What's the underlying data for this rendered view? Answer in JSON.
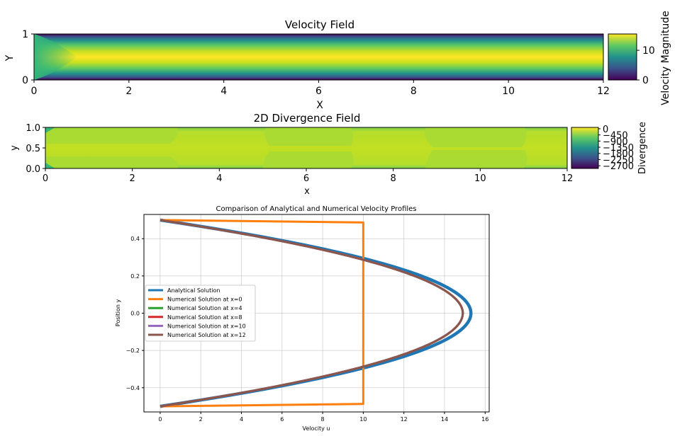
{
  "chart_data": [
    {
      "type": "heatmap",
      "title": "Velocity Field",
      "xlabel": "X",
      "ylabel": "Y",
      "xlim": [
        0,
        12
      ],
      "ylim": [
        0,
        1
      ],
      "xticks": [
        "0",
        "2",
        "4",
        "6",
        "8",
        "10",
        "12"
      ],
      "yticks": [
        "0",
        "1"
      ],
      "colormap": "viridis",
      "colorbar": {
        "label": "Velocity Magnitude",
        "ticks": [
          "0",
          "10"
        ],
        "range": [
          0,
          15.5
        ]
      },
      "max_value": 15
    },
    {
      "type": "heatmap",
      "title": "2D Divergence Field",
      "xlabel": "x",
      "ylabel": "y",
      "xlim": [
        0,
        12
      ],
      "ylim": [
        0,
        1
      ],
      "xticks": [
        "0",
        "2",
        "4",
        "6",
        "8",
        "10",
        "12"
      ],
      "yticks": [
        "0.0",
        "0.5",
        "1.0"
      ],
      "colormap": "viridis",
      "colorbar": {
        "label": "Divergence",
        "ticks": [
          "0",
          "−450",
          "−900",
          "−1350",
          "−1800",
          "−2250",
          "−2700"
        ],
        "range": [
          -2900,
          100
        ]
      }
    },
    {
      "type": "line",
      "title": "Comparison of Analytical and Numerical Velocity Profiles",
      "xlabel": "Velocity u",
      "ylabel": "Position y",
      "xlim": [
        -0.8,
        16.2
      ],
      "ylim": [
        -0.53,
        0.53
      ],
      "xticks": [
        "0",
        "2",
        "4",
        "6",
        "8",
        "10",
        "12",
        "14",
        "16"
      ],
      "yticks": [
        "−0.4",
        "−0.2",
        "0.0",
        "0.2",
        "0.4"
      ],
      "grid": true,
      "legend": "center-left",
      "series": [
        {
          "name": "Analytical Solution",
          "color": "#1f77b4",
          "u_max": 15.3,
          "profile": "parabolic"
        },
        {
          "name": "Numerical Solution at x=0",
          "color": "#ff7f0e",
          "u_plateau": 10,
          "profile": "uniform"
        },
        {
          "name": "Numerical Solution at x=4",
          "color": "#2ca02c",
          "u_max": 14.9,
          "profile": "parabolic"
        },
        {
          "name": "Numerical Solution at x=8",
          "color": "#d62728",
          "u_max": 14.9,
          "profile": "parabolic"
        },
        {
          "name": "Numerical Solution at x=10",
          "color": "#9467bd",
          "u_max": 14.9,
          "profile": "parabolic"
        },
        {
          "name": "Numerical Solution at x=12",
          "color": "#8c564b",
          "u_max": 14.9,
          "profile": "parabolic"
        }
      ]
    }
  ]
}
